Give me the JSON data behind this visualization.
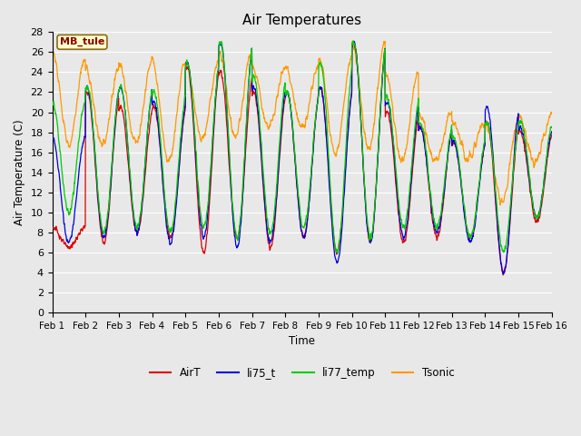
{
  "title": "Air Temperatures",
  "ylabel": "Air Temperature (C)",
  "xlabel": "Time",
  "annotation": "MB_tule",
  "ylim": [
    0,
    28
  ],
  "series_colors": {
    "AirT": "#dd0000",
    "li75_t": "#0000dd",
    "li77_temp": "#00cc00",
    "Tsonic": "#ff9900"
  },
  "legend_labels": [
    "AirT",
    "li75_t",
    "li77_temp",
    "Tsonic"
  ],
  "xtick_labels": [
    "Feb 1",
    "Feb 2",
    "Feb 3",
    "Feb 4",
    "Feb 5",
    "Feb 6",
    "Feb 7",
    "Feb 8",
    "Feb 9",
    "Feb 10",
    "Feb 11",
    "Feb 12",
    "Feb 13",
    "Feb 14",
    "Feb 15",
    "Feb 16"
  ],
  "ytick_values": [
    0,
    2,
    4,
    6,
    8,
    10,
    12,
    14,
    16,
    18,
    20,
    22,
    24,
    26,
    28
  ],
  "bg_color": "#e8e8e8",
  "grid_color": "#ffffff",
  "figsize": [
    6.4,
    4.8
  ],
  "dpi": 100
}
